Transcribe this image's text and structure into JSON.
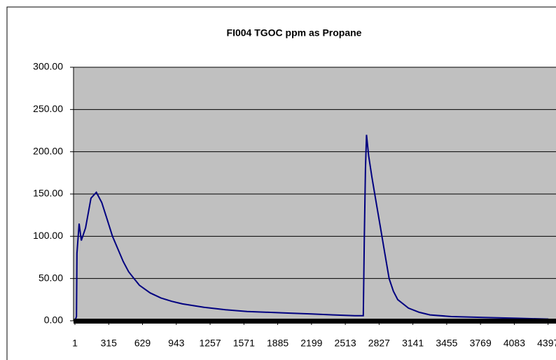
{
  "chart_data": {
    "type": "line",
    "title": "FI004 TGOC ppm as Propane",
    "x": [
      1,
      15,
      20,
      40,
      60,
      100,
      150,
      200,
      250,
      300,
      350,
      400,
      450,
      500,
      550,
      600,
      700,
      800,
      900,
      1000,
      1200,
      1400,
      1600,
      1800,
      2000,
      2200,
      2400,
      2600,
      2680,
      2690,
      2700,
      2710,
      2730,
      2760,
      2800,
      2840,
      2880,
      2920,
      2960,
      3000,
      3100,
      3200,
      3300,
      3500,
      3800,
      4100,
      4400
    ],
    "series": [
      {
        "name": "TGOC",
        "color": "#000080",
        "values": [
          0,
          5,
          80,
          115,
          95,
          110,
          145,
          152,
          140,
          120,
          100,
          85,
          70,
          58,
          50,
          42,
          33,
          27,
          23,
          20,
          16,
          13,
          11,
          10,
          9,
          8,
          7,
          6,
          6,
          100,
          180,
          220,
          195,
          170,
          140,
          110,
          80,
          50,
          35,
          25,
          15,
          10,
          7,
          5,
          4,
          3,
          2
        ]
      }
    ],
    "xlim": [
      1,
      4490
    ],
    "xticks": [
      1,
      315,
      629,
      943,
      1257,
      1571,
      1885,
      2199,
      2513,
      2827,
      3141,
      3455,
      3769,
      4083,
      4397
    ],
    "ylim": [
      0,
      300
    ],
    "yticks": [
      {
        "value": 0,
        "label": "0.00"
      },
      {
        "value": 50,
        "label": "50.00"
      },
      {
        "value": 100,
        "label": "100.00"
      },
      {
        "value": 150,
        "label": "150.00"
      },
      {
        "value": 200,
        "label": "200.00"
      },
      {
        "value": 250,
        "label": "250.00"
      },
      {
        "value": 300,
        "label": "300.00"
      }
    ],
    "grid": true
  }
}
